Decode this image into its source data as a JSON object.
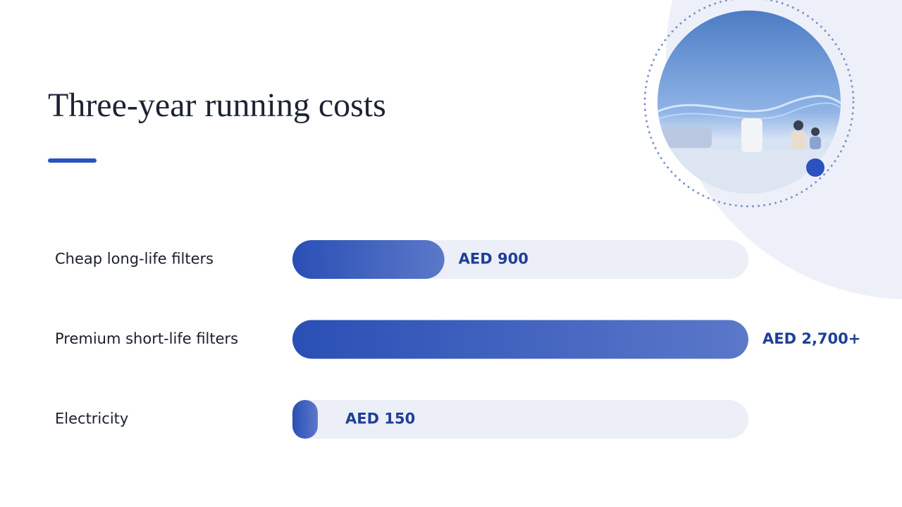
{
  "chart_data": {
    "type": "bar",
    "orientation": "horizontal",
    "title": "Three-year running costs",
    "categories": [
      "Cheap long-life filters",
      "Premium short-life filters",
      "Electricity"
    ],
    "values": [
      900,
      2700,
      150
    ],
    "value_labels": [
      "AED 900",
      "AED 2,700+",
      "AED 150"
    ],
    "color": "#2a4fb5"
  }
}
